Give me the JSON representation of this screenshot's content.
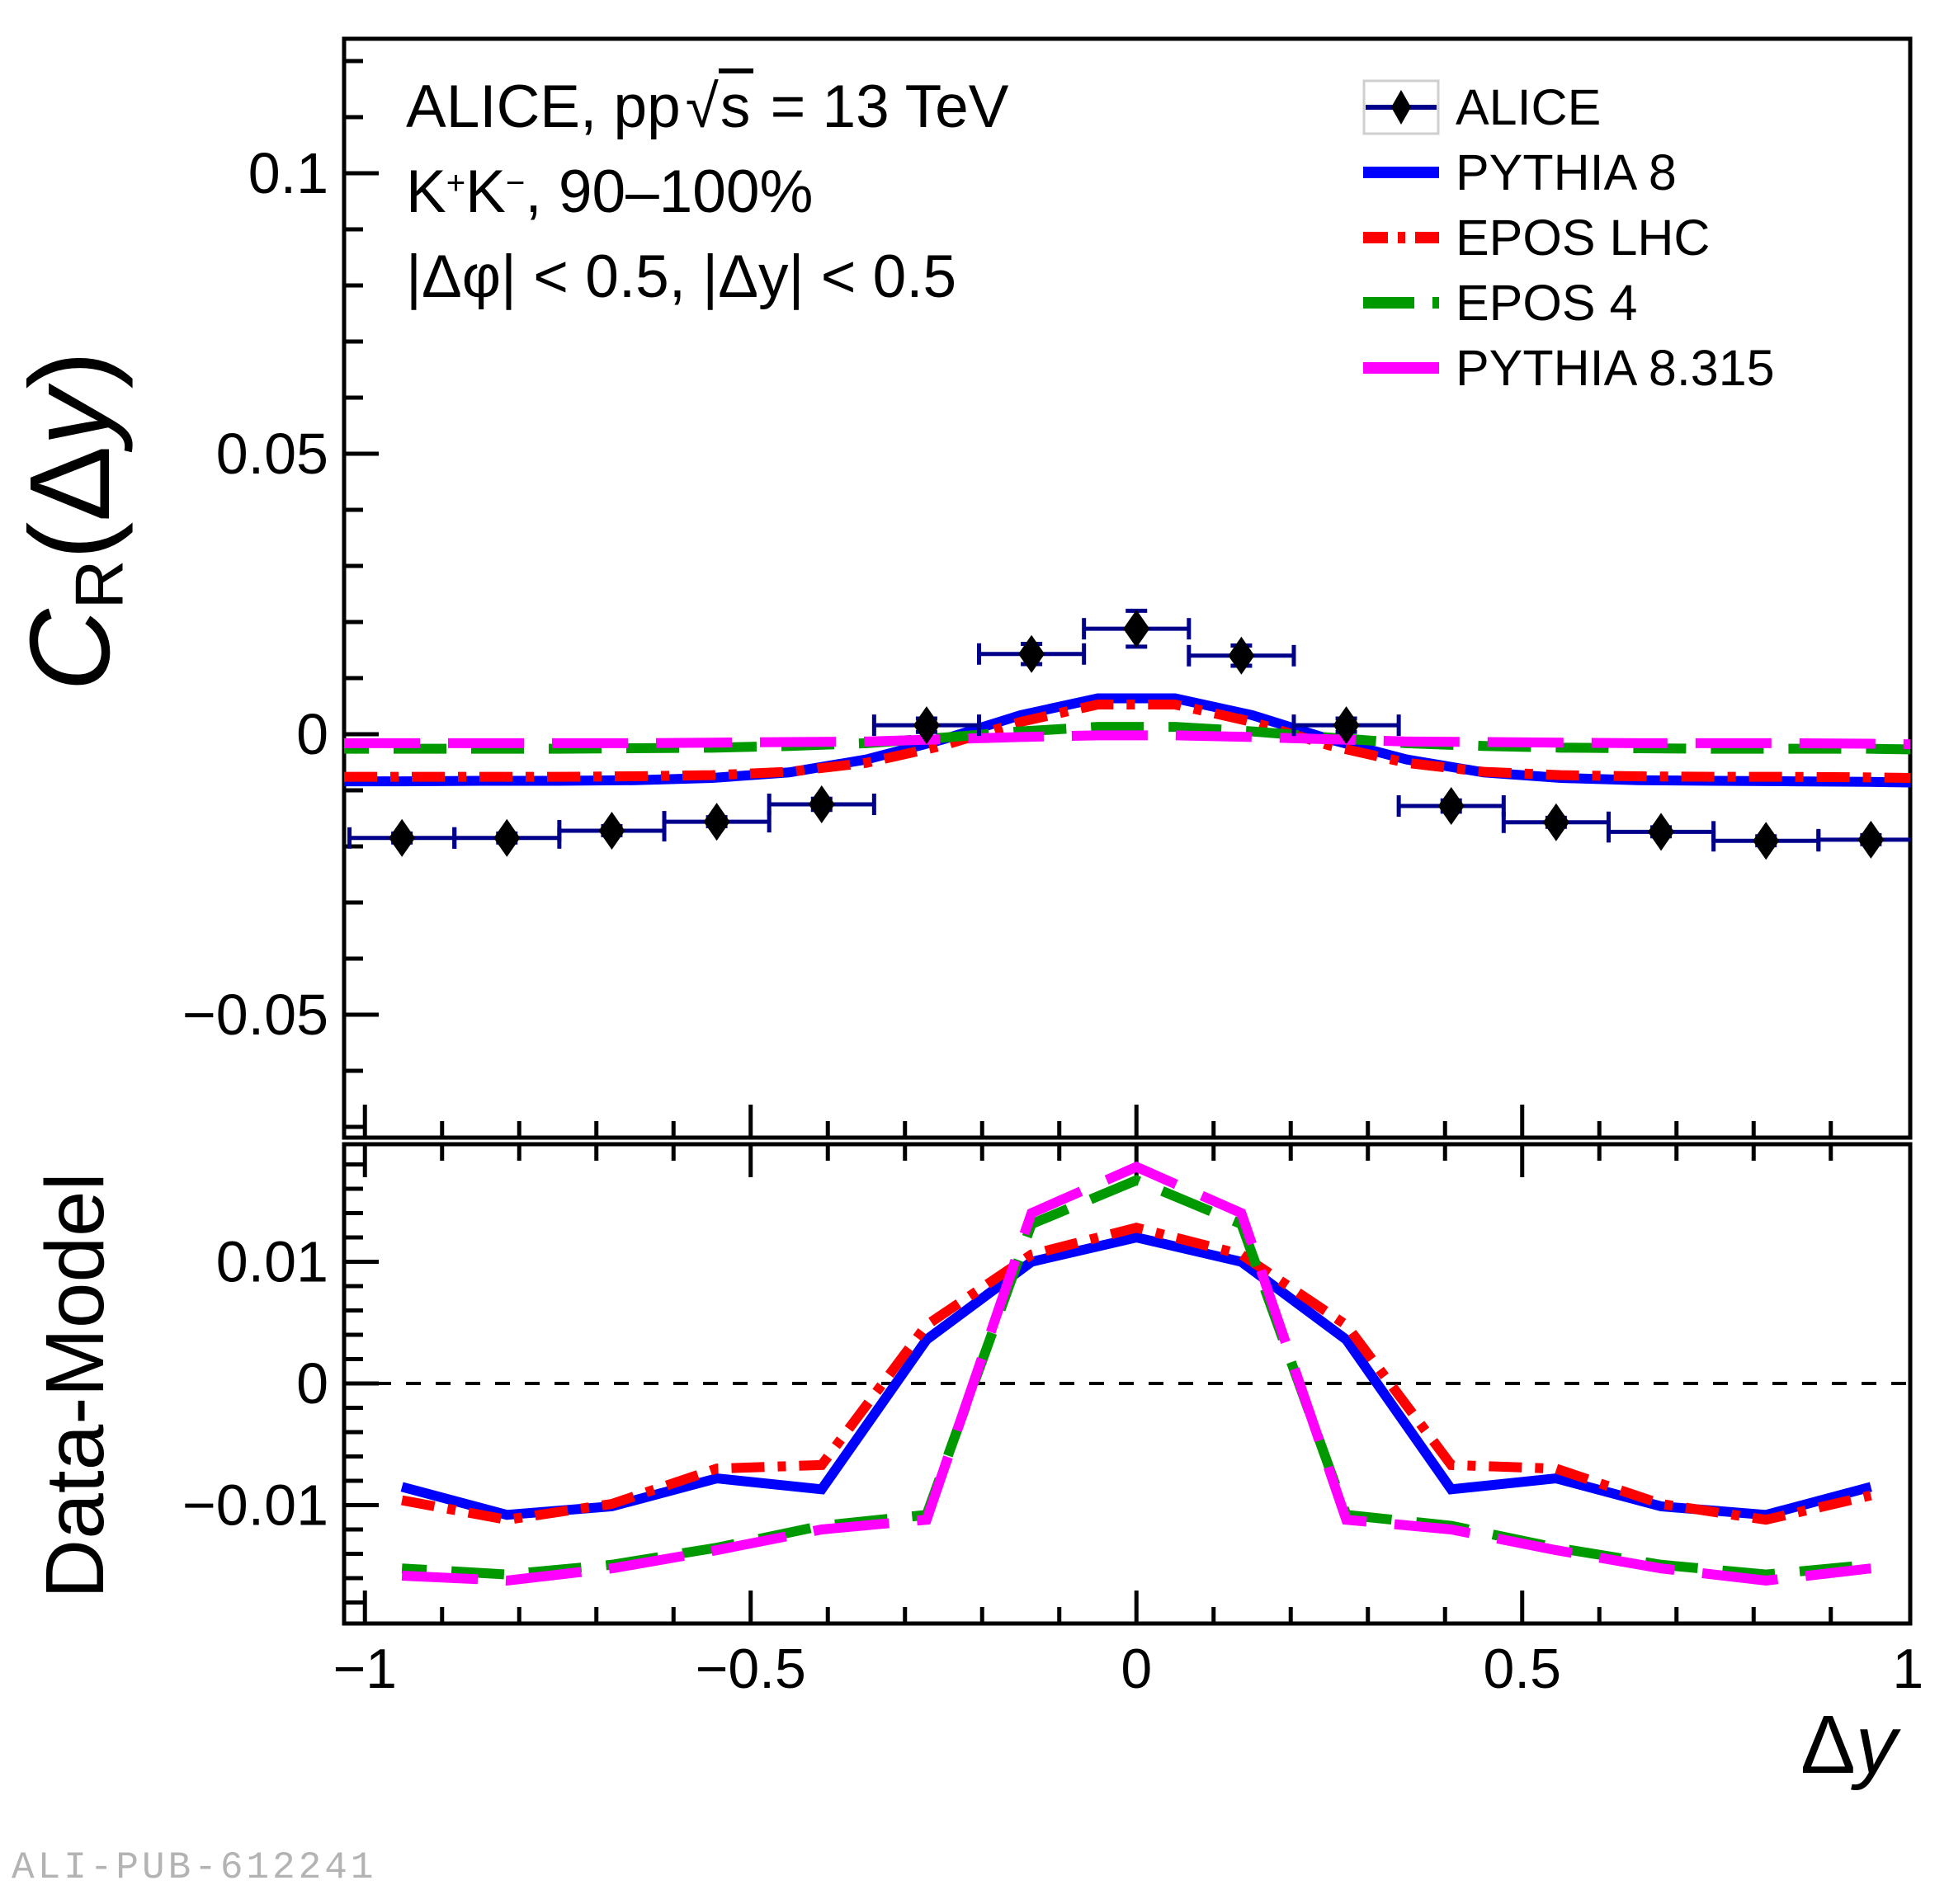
{
  "header": {
    "line1": {
      "pre": "ALICE, pp",
      "sqrt": "√",
      "sqrt_arg": "s",
      "post": " = 13 TeV"
    },
    "line2": {
      "pre": "K",
      "sup1": "+",
      "mid": "K",
      "sup2": "−",
      "post": ", 90–100%"
    },
    "line3": "|Δφ| < 0.5, |Δy| < 0.5"
  },
  "legend": {
    "position": "top-right",
    "items": [
      {
        "label": "ALICE",
        "type": "data-marker",
        "color": "#000000"
      },
      {
        "label": "PYTHIA 8",
        "type": "line",
        "style": "solid",
        "color": "#0000ff"
      },
      {
        "label": "EPOS LHC",
        "type": "line",
        "style": "dash-dot",
        "color": "#ff0000"
      },
      {
        "label": "EPOS 4",
        "type": "line",
        "style": "dashed",
        "color": "#009900"
      },
      {
        "label": "PYTHIA 8.315",
        "type": "line",
        "style": "long-dash",
        "color": "#ff00ff"
      }
    ]
  },
  "alice_marker": {
    "marker_color": "#000000",
    "line_color": "#00008b",
    "shape": "diamond"
  },
  "axes": {
    "x": {
      "title_delta": "Δ",
      "title_var": "y",
      "major": [
        {
          "v": -1,
          "label": "−1"
        },
        {
          "v": -0.5,
          "label": "−0.5"
        },
        {
          "v": 0,
          "label": "0"
        },
        {
          "v": 0.5,
          "label": "0.5"
        },
        {
          "v": 1,
          "label": "1"
        }
      ],
      "minor_step": 0.1
    },
    "y_top": {
      "title_c": "C",
      "title_sub": "R",
      "title_rest_open": "(",
      "title_delta": "Δ",
      "title_var": "y",
      "title_rest_close": ")",
      "major": [
        {
          "v": 0.1,
          "label": "0.1"
        },
        {
          "v": 0.05,
          "label": "0.05"
        },
        {
          "v": 0,
          "label": "0"
        },
        {
          "v": -0.05,
          "label": "−0.05"
        }
      ],
      "minor_step": 0.01
    },
    "y_bottom": {
      "title": "Data-Model",
      "major": [
        {
          "v": 0.01,
          "label": "0.01"
        },
        {
          "v": 0,
          "label": "0"
        },
        {
          "v": -0.01,
          "label": "−0.01"
        }
      ],
      "minor_step": 0.002
    }
  },
  "footer": "ALI-PUB-612241",
  "chart_data": [
    {
      "type": "line",
      "panel": "top",
      "title": [
        "ALICE, pp √s = 13 TeV",
        "K⁺K⁻, 90–100%",
        "|Δφ| < 0.5, |Δy| < 0.5"
      ],
      "xlabel": "Δy",
      "ylabel": "C_R(Δy)",
      "xlim": [
        -1.027,
        1.003
      ],
      "ylim": [
        -0.0713,
        0.124
      ],
      "grid": false,
      "legend_position": "top-right",
      "alice_points": {
        "name": "ALICE",
        "x": [
          -0.952,
          -0.816,
          -0.68,
          -0.544,
          -0.408,
          -0.272,
          -0.136,
          0,
          0.136,
          0.272,
          0.408,
          0.544,
          0.68,
          0.816,
          0.952
        ],
        "y": [
          -0.0185,
          -0.0185,
          -0.0172,
          -0.0156,
          -0.0125,
          0.0016,
          0.0143,
          0.0188,
          0.014,
          0.0016,
          -0.0128,
          -0.0157,
          -0.0174,
          -0.019,
          -0.0188
        ],
        "xerr": 0.068,
        "yerr": [
          0.0008,
          0.0008,
          0.0008,
          0.0008,
          0.001,
          0.0012,
          0.0018,
          0.0032,
          0.0018,
          0.0012,
          0.001,
          0.0008,
          0.0008,
          0.0008,
          0.0008
        ]
      },
      "curves_x": [
        -1.027,
        -0.95,
        -0.85,
        -0.75,
        -0.65,
        -0.55,
        -0.45,
        -0.35,
        -0.25,
        -0.15,
        -0.05,
        0.05,
        0.15,
        0.25,
        0.35,
        0.45,
        0.55,
        0.65,
        0.75,
        0.85,
        0.95,
        1.003
      ],
      "series": [
        {
          "name": "PYTHIA 8",
          "color": "#0000ff",
          "style": "solid",
          "y": [
            -0.0084,
            -0.0084,
            -0.0083,
            -0.0083,
            -0.0082,
            -0.0078,
            -0.0068,
            -0.0045,
            -0.0009,
            0.0034,
            0.0064,
            0.0064,
            0.0034,
            -0.0009,
            -0.0045,
            -0.0068,
            -0.0078,
            -0.0082,
            -0.0083,
            -0.0084,
            -0.0085,
            -0.0086
          ]
        },
        {
          "name": "EPOS LHC",
          "color": "#ff0000",
          "style": "dash-dot",
          "y": [
            -0.0076,
            -0.0076,
            -0.0076,
            -0.0076,
            -0.0075,
            -0.0073,
            -0.0067,
            -0.0051,
            -0.002,
            0.0022,
            0.0053,
            0.0053,
            0.0022,
            -0.002,
            -0.0051,
            -0.0067,
            -0.0073,
            -0.0075,
            -0.0076,
            -0.0076,
            -0.0077,
            -0.0078
          ]
        },
        {
          "name": "EPOS 4",
          "color": "#009900",
          "style": "dash",
          "y": [
            -0.0026,
            -0.0026,
            -0.0026,
            -0.0026,
            -0.0025,
            -0.0024,
            -0.0021,
            -0.0016,
            -0.0006,
            0.0005,
            0.0013,
            0.0013,
            0.0005,
            -0.0006,
            -0.0016,
            -0.0021,
            -0.0024,
            -0.0025,
            -0.0026,
            -0.0026,
            -0.0026,
            -0.0027
          ]
        },
        {
          "name": "PYTHIA 8.315",
          "color": "#ff00ff",
          "style": "long-dash",
          "y": [
            -0.0016,
            -0.0016,
            -0.0016,
            -0.0016,
            -0.0016,
            -0.0015,
            -0.0014,
            -0.0013,
            -0.0009,
            -0.0005,
            -0.0002,
            -0.0002,
            -0.0005,
            -0.0009,
            -0.0013,
            -0.0014,
            -0.0015,
            -0.0016,
            -0.0016,
            -0.0016,
            -0.0017,
            -0.0018
          ]
        }
      ]
    },
    {
      "type": "line",
      "panel": "bottom",
      "xlabel": "Δy",
      "ylabel": "Data-Model",
      "xlim": [
        -1.027,
        1.003
      ],
      "ylim": [
        -0.0197,
        0.0197
      ],
      "grid": false,
      "zero_line": true,
      "x": [
        -0.952,
        -0.816,
        -0.68,
        -0.544,
        -0.408,
        -0.272,
        -0.136,
        0,
        0.136,
        0.272,
        0.408,
        0.544,
        0.68,
        0.816,
        0.952
      ],
      "series": [
        {
          "name": "PYTHIA 8",
          "color": "#0000ff",
          "style": "solid",
          "y": [
            -0.0085,
            -0.0108,
            -0.0101,
            -0.0078,
            -0.0087,
            0.0036,
            0.01,
            0.012,
            0.01,
            0.0036,
            -0.0087,
            -0.0078,
            -0.0101,
            -0.0108,
            -0.0085
          ]
        },
        {
          "name": "EPOS LHC",
          "color": "#ff0000",
          "style": "dash-dot",
          "y": [
            -0.0096,
            -0.0112,
            -0.0099,
            -0.007,
            -0.0067,
            0.0048,
            0.0106,
            0.0128,
            0.0106,
            0.0048,
            -0.0067,
            -0.007,
            -0.0099,
            -0.0112,
            -0.0092
          ]
        },
        {
          "name": "EPOS 4",
          "color": "#009900",
          "style": "dash",
          "y": [
            -0.0152,
            -0.0157,
            -0.0149,
            -0.0135,
            -0.0117,
            -0.0108,
            0.0131,
            0.0167,
            0.0131,
            -0.0108,
            -0.0117,
            -0.0135,
            -0.0149,
            -0.0157,
            -0.0149
          ]
        },
        {
          "name": "PYTHIA 8.315",
          "color": "#ff00ff",
          "style": "long-dash",
          "y": [
            -0.0158,
            -0.0162,
            -0.0152,
            -0.0137,
            -0.012,
            -0.0112,
            0.014,
            0.0178,
            0.014,
            -0.0112,
            -0.012,
            -0.0137,
            -0.0152,
            -0.0162,
            -0.0152
          ]
        }
      ]
    }
  ]
}
